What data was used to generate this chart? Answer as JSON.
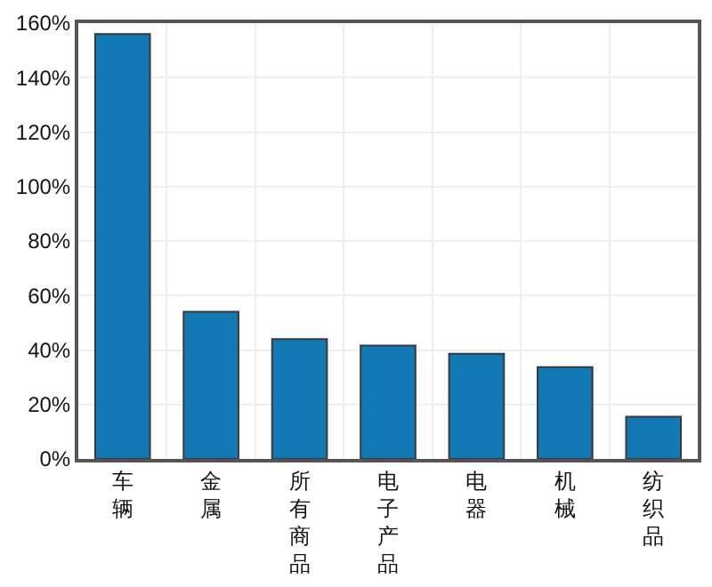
{
  "chart_data": {
    "type": "bar",
    "categories": [
      "车辆",
      "金属",
      "所有商品",
      "电子产品",
      "电器",
      "机械",
      "纺织品"
    ],
    "values": [
      156,
      54,
      44,
      41.6,
      38.6,
      33.7,
      15.5
    ],
    "color": "#1379b5",
    "ylim": [
      0,
      160
    ],
    "yticks": [
      {
        "value": 0,
        "label": "0%"
      },
      {
        "value": 20,
        "label": "20%"
      },
      {
        "value": 40,
        "label": "40%"
      },
      {
        "value": 60,
        "label": "60%"
      },
      {
        "value": 80,
        "label": "80%"
      },
      {
        "value": 100,
        "label": "100%"
      },
      {
        "value": 120,
        "label": "120%"
      },
      {
        "value": 140,
        "label": "140%"
      },
      {
        "value": 160,
        "label": "160%"
      }
    ],
    "grid": true,
    "legend": false
  }
}
